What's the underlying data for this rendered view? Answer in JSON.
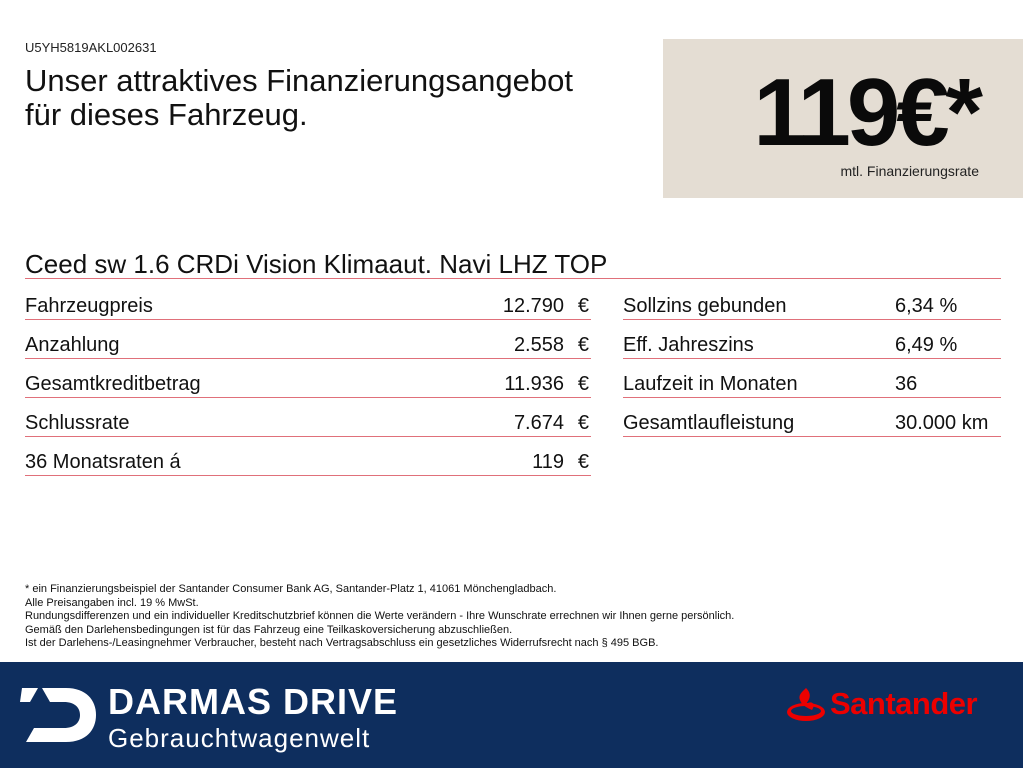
{
  "header": {
    "vin": "U5YH5819AKL002631",
    "headline_line1": "Unser attraktives Finanzierungsangebot",
    "headline_line2": "für dieses Fahrzeug."
  },
  "price_box": {
    "rate": "119€*",
    "rate_label": "mtl. Finanzierungsrate",
    "background_color": "#e4ddd3"
  },
  "model": {
    "title": "Ceed sw 1.6 CRDi Vision Klimaaut. Navi LHZ TOP"
  },
  "financing_left": [
    {
      "label": "Fahrzeugpreis",
      "value": "12.790",
      "unit": "€"
    },
    {
      "label": "Anzahlung",
      "value": "2.558",
      "unit": "€"
    },
    {
      "label": "Gesamtkreditbetrag",
      "value": "11.936",
      "unit": "€"
    },
    {
      "label": "Schlussrate",
      "value": "7.674",
      "unit": "€"
    },
    {
      "label": "36 Monatsraten á",
      "value": "119",
      "unit": "€"
    }
  ],
  "financing_right": [
    {
      "label": "Sollzins gebunden",
      "value": "6,34 %"
    },
    {
      "label": "Eff. Jahreszins",
      "value": "6,49 %"
    },
    {
      "label": "Laufzeit in Monaten",
      "value": "36"
    },
    {
      "label": "Gesamtlaufleistung",
      "value": "30.000 km"
    }
  ],
  "footnotes": [
    "* ein Finanzierungsbeispiel der Santander Consumer Bank AG, Santander-Platz 1, 41061 Mönchengladbach.",
    "Alle Preisangaben incl. 19 % MwSt.",
    "Rundungsdifferenzen und ein individueller Kreditschutzbrief können die Werte verändern - Ihre Wunschrate errechnen wir Ihnen gerne persönlich.",
    "Gemäß den Darlehensbedingungen ist für das Fahrzeug eine Teilkaskoversicherung abzuschließen.",
    "Ist der Darlehens-/Leasingnehmer Verbraucher, besteht nach Vertragsabschluss ein gesetzliches Widerrufsrecht nach § 495 BGB."
  ],
  "footer": {
    "brand_name": "DARMAS DRIVE",
    "brand_sub": "Gebrauchtwagenwelt",
    "partner": "Santander",
    "background_color": "#0e2e5e",
    "partner_color": "#ec0000",
    "brand_icon": "darmas-d-logo-icon",
    "partner_icon": "santander-flame-icon"
  }
}
